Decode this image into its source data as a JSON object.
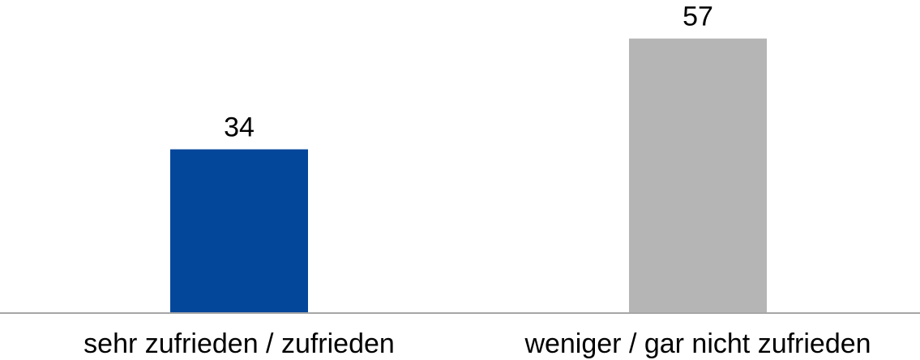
{
  "chart_data": {
    "type": "bar",
    "categories": [
      "sehr zufrieden / zufrieden",
      "weniger / gar nicht zufrieden"
    ],
    "values": [
      34,
      57
    ],
    "data_labels": [
      "34",
      "57"
    ],
    "colors": [
      "#03479A",
      "#B5B5B5"
    ],
    "axis_color": "#A6A6A6",
    "ylim": [
      0,
      65
    ],
    "grid": false,
    "legend": "none"
  }
}
